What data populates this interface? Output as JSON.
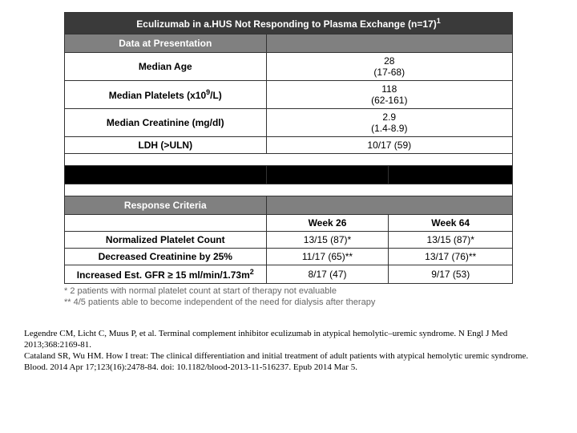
{
  "title": "Eculizumab in a.HUS Not Responding to Plasma Exchange (n=17)",
  "title_sup": "1",
  "section1": "Data at Presentation",
  "rows1": [
    {
      "label": "Median Age",
      "value": "28\n(17-68)"
    },
    {
      "label_html": "Median Platelets (x10<sup>9</sup>/L)",
      "value": "118\n(62-161)"
    },
    {
      "label": "Median Creatinine (mg/dl)",
      "value": "2.9\n(1.4-8.9)"
    },
    {
      "label": "LDH (>ULN)",
      "value": "10/17 (59)"
    }
  ],
  "section2": "Response Criteria",
  "col_heads": [
    "Week 26",
    "Week 64"
  ],
  "rows2": [
    {
      "label": "Normalized Platelet Count",
      "w26": "13/15 (87)*",
      "w64": "13/15 (87)*"
    },
    {
      "label": "Decreased Creatinine by 25%",
      "w26": "11/17 (65)**",
      "w64": "13/17 (76)**"
    },
    {
      "label_html": "Increased Est. GFR ≥ 15 ml/min/1.73m<sup>2</sup>",
      "w26": "8/17 (47)",
      "w64": "9/17 (53)"
    }
  ],
  "footnotes": [
    "*  2 patients with normal platelet count at start of therapy not evaluable",
    "** 4/5 patients able to become independent of the need for dialysis after therapy"
  ],
  "citations": [
    "Legendre CM, Licht C, Muus P, et al. Terminal complement inhibitor eculizumab in atypical hemolytic–uremic syndrome. N Engl J Med 2013;368:2169-81.",
    "Cataland SR, Wu HM. How I treat: The clinical differentiation and initial treatment of adult patients with atypical hemolytic uremic syndrome. Blood. 2014 Apr 17;123(16):2478-84. doi: 10.1182/blood-2013-11-516237. Epub 2014 Mar 5."
  ],
  "colors": {
    "title_bg": "#3a3a3a",
    "section_bg": "#808080",
    "black_bg": "#000000",
    "border": "#333333",
    "footnote_text": "#666666"
  }
}
